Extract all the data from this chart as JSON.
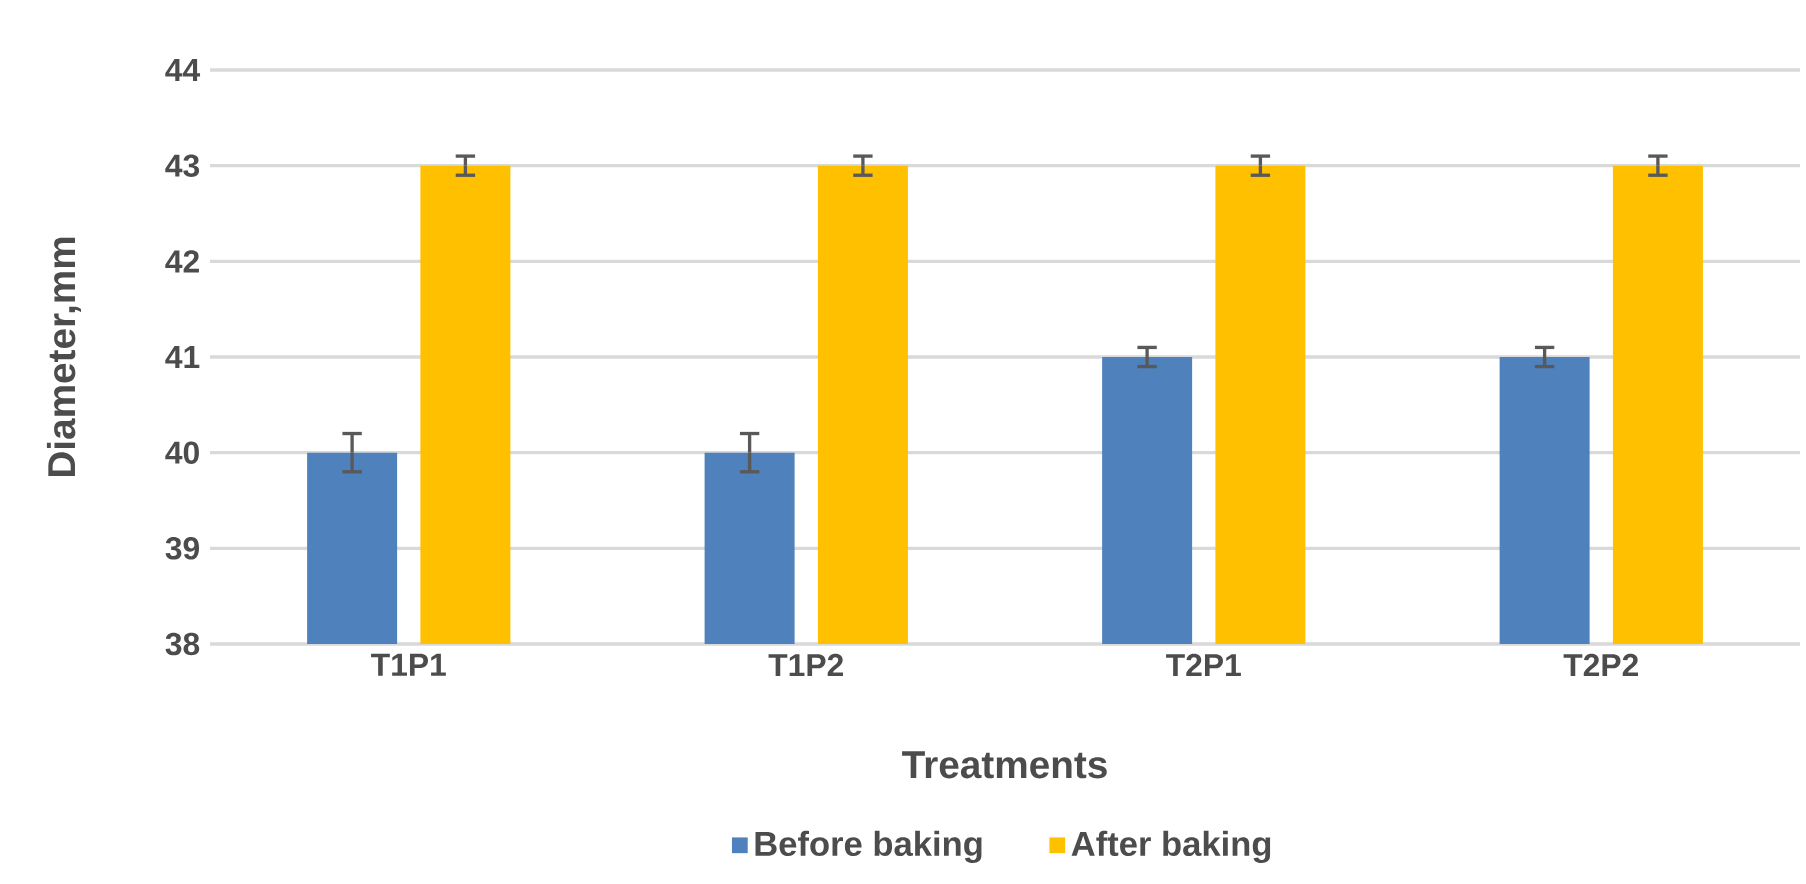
{
  "chart_data": {
    "type": "bar",
    "xlabel": "Treatments",
    "ylabel": "Diameter,mm",
    "categories": [
      "T1P1",
      "T1P2",
      "T2P1",
      "T2P2"
    ],
    "series": [
      {
        "name": "Before baking",
        "color": "#4f81bd",
        "values": [
          40,
          40,
          41,
          41
        ],
        "errors": [
          0.2,
          0.2,
          0.1,
          0.1
        ]
      },
      {
        "name": "After baking",
        "color": "#ffc000",
        "values": [
          43,
          43,
          43,
          43
        ],
        "errors": [
          0.1,
          0.1,
          0.1,
          0.1
        ]
      }
    ],
    "ylim": [
      38,
      44
    ],
    "yticks": [
      38,
      39,
      40,
      41,
      42,
      43,
      44
    ],
    "grid": "y",
    "legend": "bottom"
  }
}
